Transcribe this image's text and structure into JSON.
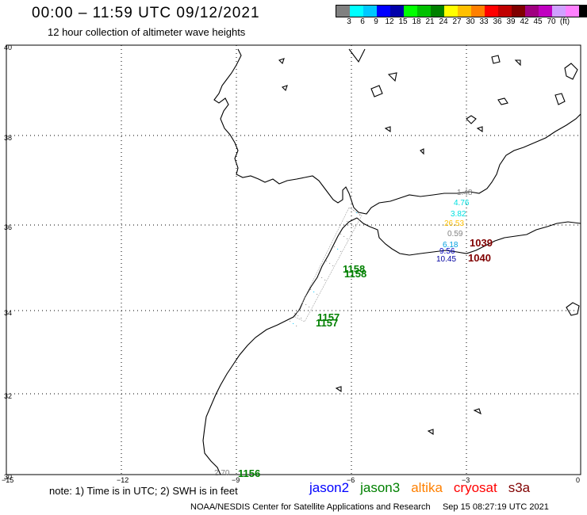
{
  "header": {
    "title": "00:00 – 11:59 UTC 09/12/2021",
    "subtitle": "12 hour collection of altimeter wave heights"
  },
  "legend": {
    "colors": [
      "#808080",
      "#00ffff",
      "#00c8ff",
      "#0000ff",
      "#0000aa",
      "#00ff00",
      "#00c000",
      "#008000",
      "#ffff00",
      "#ffc000",
      "#ff8000",
      "#ff0000",
      "#c00000",
      "#800000",
      "#a00080",
      "#c000c0",
      "#d0a0ff",
      "#ff80ff",
      "#000000"
    ],
    "labels": [
      "3",
      "6",
      "9",
      "12",
      "15",
      "18",
      "21",
      "24",
      "27",
      "30",
      "33",
      "36",
      "39",
      "42",
      "45",
      "70",
      "(ft)"
    ]
  },
  "axes": {
    "lon_labels": [
      "−15",
      "−12",
      "−9",
      "−6",
      "−3",
      "0"
    ],
    "lat_labels": [
      "40",
      "38",
      "36",
      "34",
      "32",
      "30"
    ]
  },
  "wave_labels": [
    {
      "text": "1.48",
      "color": "#808080"
    },
    {
      "text": "4.76",
      "color": "#00e0e0"
    },
    {
      "text": "3.82",
      "color": "#00e0e0"
    },
    {
      "text": "26.53",
      "color": "#ffc000"
    },
    {
      "text": "0.59",
      "color": "#808080"
    },
    {
      "text": "6.18",
      "color": "#00a0e0"
    },
    {
      "text": "9.56",
      "color": "#0000c0"
    },
    {
      "text": "10.45",
      "color": "#0000a0"
    },
    {
      "text": "2.70",
      "color": "#808080"
    }
  ],
  "pass_labels": [
    {
      "text": "1039",
      "color": "#800000"
    },
    {
      "text": "1040",
      "color": "#800000"
    },
    {
      "text": "1158",
      "color": "#008000"
    },
    {
      "text": "1158",
      "color": "#008000"
    },
    {
      "text": "1157",
      "color": "#008000"
    },
    {
      "text": "1157",
      "color": "#008000"
    },
    {
      "text": "1156",
      "color": "#008000"
    }
  ],
  "footer": {
    "note": "note: 1) Time is in UTC; 2) SWH is in feet",
    "satellites": [
      {
        "name": "jason2",
        "color": "#0000ff"
      },
      {
        "name": "jason3",
        "color": "#008000"
      },
      {
        "name": "altika",
        "color": "#ff8000"
      },
      {
        "name": "cryosat",
        "color": "#ff0000"
      },
      {
        "name": "s3a",
        "color": "#800000"
      }
    ],
    "credit": "NOAA/NESDIS Center for Satellite Applications and Research",
    "timestamp": "Sep 15 08:27:19 UTC 2021"
  }
}
